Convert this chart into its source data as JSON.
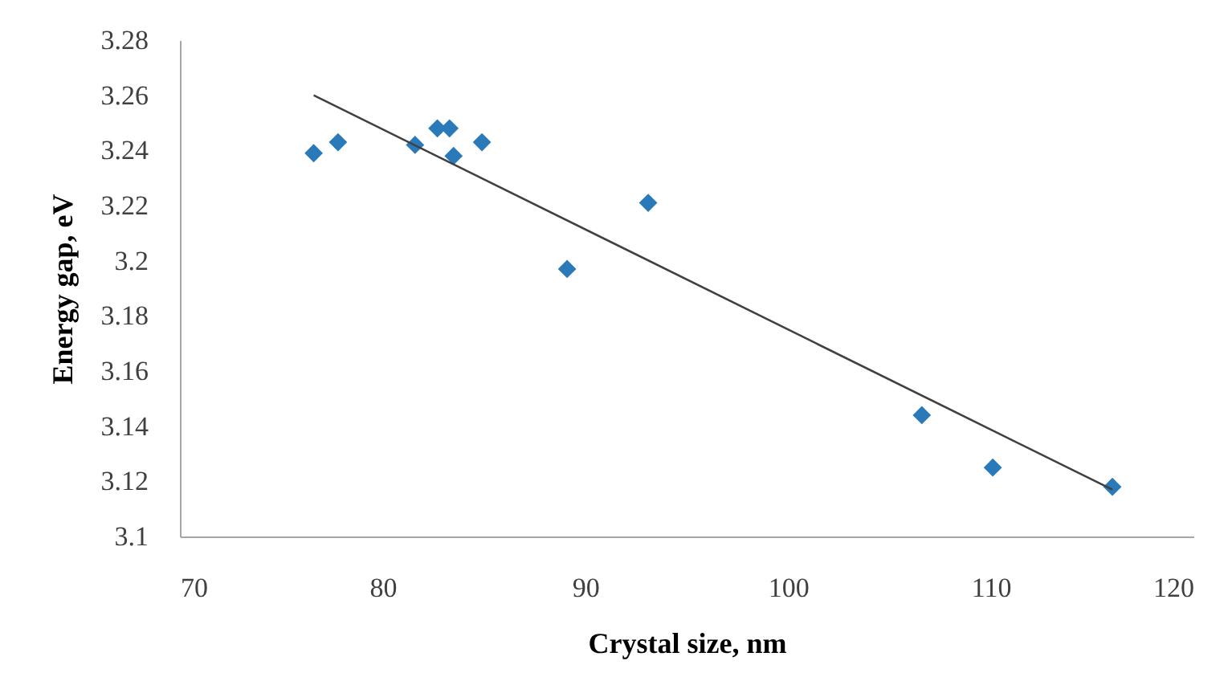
{
  "chart_data": {
    "type": "scatter",
    "xlabel": "Crystal size, nm",
    "ylabel": "Energy gap, eV",
    "xlim": [
      70,
      120
    ],
    "xticks": [
      70,
      80,
      90,
      100,
      110,
      120
    ],
    "ylim": [
      3.1,
      3.28
    ],
    "yticks": [
      3.1,
      3.12,
      3.14,
      3.16,
      3.18,
      3.2,
      3.22,
      3.24,
      3.26,
      3.28
    ],
    "grid": false,
    "marker": "diamond",
    "series": [
      {
        "type": "scatter",
        "color": "#2a7ab9",
        "x": [
          76.6,
          77.8,
          81.6,
          82.7,
          83.3,
          83.5,
          84.9,
          89.1,
          93.1,
          106.6,
          110.1,
          116.0
        ],
        "values": [
          3.239,
          3.243,
          3.242,
          3.248,
          3.248,
          3.238,
          3.243,
          3.197,
          3.221,
          3.144,
          3.125,
          3.118
        ]
      },
      {
        "type": "line",
        "color": "#404040",
        "marker": "none",
        "line_style": "solid",
        "x": [
          76.6,
          116.0
        ],
        "values": [
          3.26,
          3.117
        ]
      }
    ]
  }
}
